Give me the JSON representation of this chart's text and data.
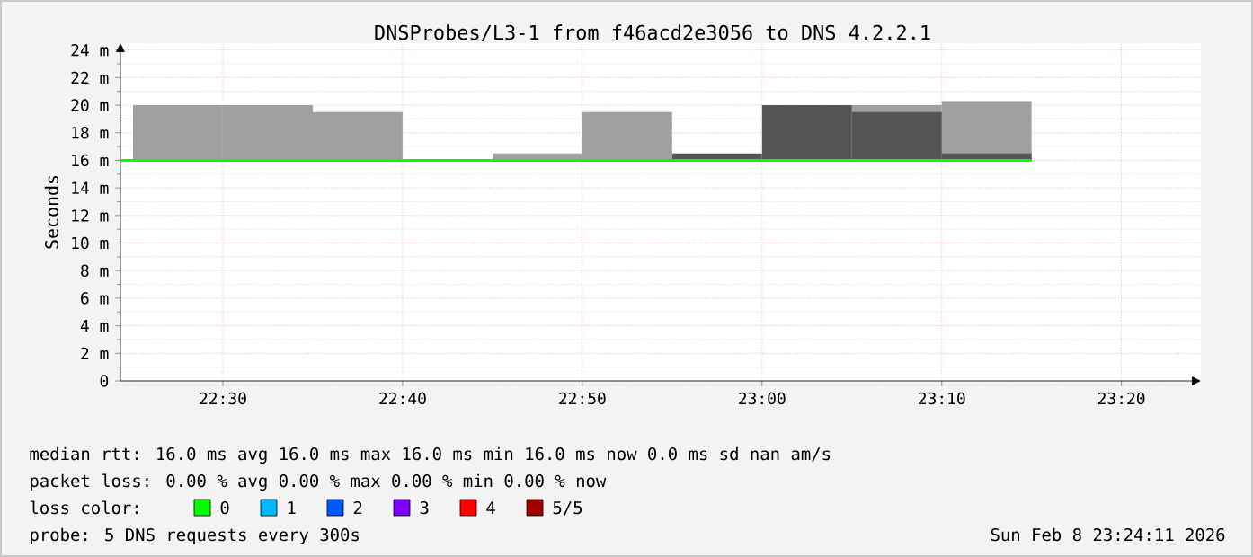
{
  "chart_data": {
    "type": "bar",
    "title": "DNSProbes/L3-1 from f46acd2e3056 to DNS 4.2.2.1",
    "ylabel": "Seconds",
    "x": [
      22.4583,
      22.5417,
      22.625,
      22.7083,
      22.7917,
      22.875,
      22.9583,
      23.0417,
      23.125,
      23.2083
    ],
    "xlim": [
      22.405,
      23.407
    ],
    "xticks": [
      {
        "value": 22.5,
        "label": "22:30"
      },
      {
        "value": 22.6667,
        "label": "22:40"
      },
      {
        "value": 22.8333,
        "label": "22:50"
      },
      {
        "value": 23.0,
        "label": "23:00"
      },
      {
        "value": 23.1667,
        "label": "23:10"
      },
      {
        "value": 23.3333,
        "label": "23:20"
      }
    ],
    "ylim": [
      0,
      24.5
    ],
    "yticks": [
      {
        "value": 0,
        "label": "0"
      },
      {
        "value": 2,
        "label": "2 m"
      },
      {
        "value": 4,
        "label": "4 m"
      },
      {
        "value": 6,
        "label": "6 m"
      },
      {
        "value": 8,
        "label": "8 m"
      },
      {
        "value": 10,
        "label": "10 m"
      },
      {
        "value": 12,
        "label": "12 m"
      },
      {
        "value": 14,
        "label": "14 m"
      },
      {
        "value": 16,
        "label": "16 m"
      },
      {
        "value": 18,
        "label": "18 m"
      },
      {
        "value": 20,
        "label": "20 m"
      },
      {
        "value": 22,
        "label": "22 m"
      },
      {
        "value": 24,
        "label": "24 m"
      }
    ],
    "grid": true,
    "legend": "bottom",
    "legend_title": "loss color:",
    "series": [
      {
        "color": "#a0a0a0",
        "base": [
          16,
          16,
          16,
          null,
          16,
          16,
          null,
          null,
          16,
          16
        ],
        "values": [
          4.0,
          4.0,
          3.5,
          null,
          0.5,
          3.5,
          null,
          null,
          4.0,
          4.3
        ]
      },
      {
        "color": "#555555",
        "base": [
          null,
          null,
          null,
          null,
          null,
          null,
          16,
          16,
          16,
          16
        ],
        "values": [
          null,
          null,
          null,
          null,
          null,
          null,
          0.5,
          4.0,
          3.5,
          0.5
        ]
      },
      {
        "name": "0",
        "type": "line",
        "color": "#00ff00",
        "x": [
          22.405,
          23.25
        ],
        "values": [
          16.0,
          16.0
        ]
      },
      {
        "name": "1",
        "type": "line",
        "color": "#00b8ff",
        "values": [
          null,
          null,
          null,
          null,
          null,
          null,
          null,
          null,
          null,
          null
        ]
      },
      {
        "name": "2",
        "type": "line",
        "color": "#0059ff",
        "values": [
          null,
          null,
          null,
          null,
          null,
          null,
          null,
          null,
          null,
          null
        ]
      },
      {
        "name": "3",
        "type": "line",
        "color": "#7e00ff",
        "values": [
          null,
          null,
          null,
          null,
          null,
          null,
          null,
          null,
          null,
          null
        ]
      },
      {
        "name": "4",
        "type": "line",
        "color": "#ff0000",
        "values": [
          null,
          null,
          null,
          null,
          null,
          null,
          null,
          null,
          null,
          null
        ]
      },
      {
        "name": "5/5",
        "type": "line",
        "color": "#a10000",
        "values": [
          null,
          null,
          null,
          null,
          null,
          null,
          null,
          null,
          null,
          null
        ]
      }
    ],
    "annotations": [
      "median rtt: 16.0 ms avg 16.0 ms max 16.0 ms min 16.0 ms now 0.0 ms sd nan am/s",
      "packet loss: 0.00 % avg 0.00 % max 0.00 % min 0.00 % now",
      "probe: 5 DNS requests every 300s",
      "Sun Feb 8 23:24:11 2026"
    ]
  }
}
